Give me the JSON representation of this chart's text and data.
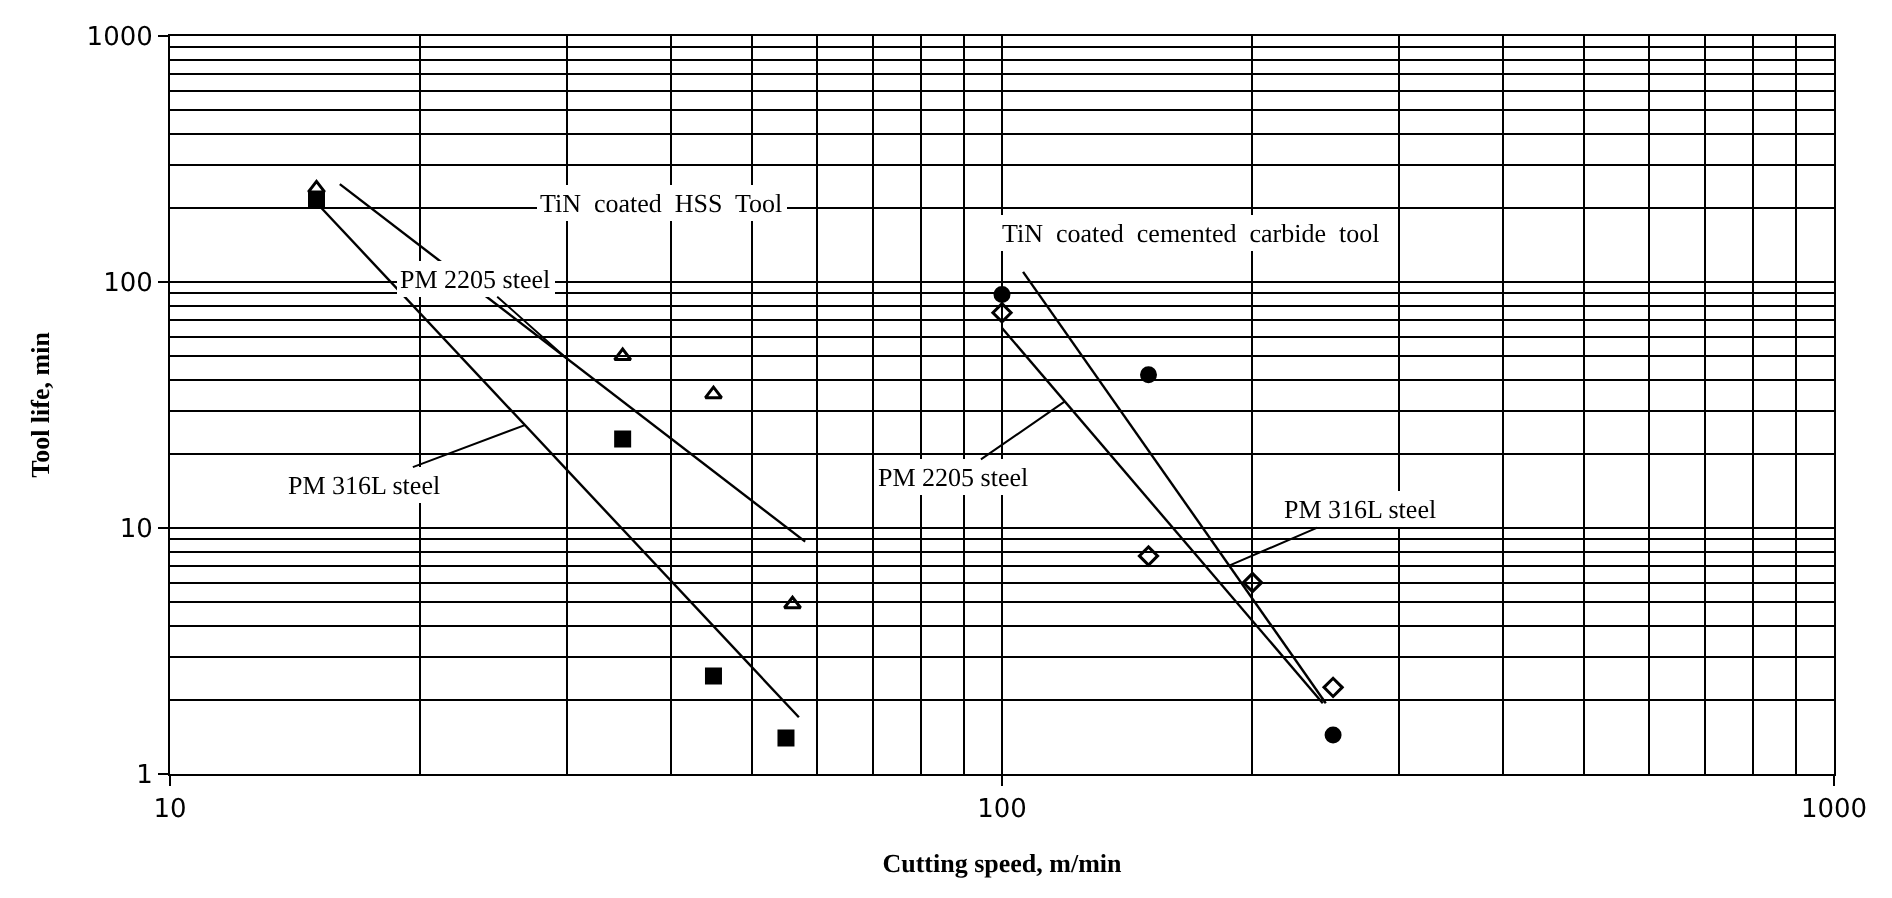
{
  "chart_data": {
    "type": "scatter",
    "xlabel": "Cutting speed, m/min",
    "ylabel": "Tool life, min",
    "log": "xy",
    "grid": true,
    "xlim": [
      10,
      1000
    ],
    "xticks": [
      10,
      100,
      1000
    ],
    "ylim": [
      1,
      1000
    ],
    "yticks": [
      1,
      10,
      100,
      1000
    ],
    "series": [
      {
        "marker": "triangle",
        "color": "#000000",
        "x": [
          15,
          35,
          45,
          56
        ],
        "values": [
          240,
          50,
          35,
          4.9
        ]
      },
      {
        "marker": "square",
        "color": "#000000",
        "x": [
          15,
          35,
          45,
          55
        ],
        "values": [
          215,
          23,
          2.5,
          1.4
        ]
      },
      {
        "marker": "diamond",
        "color": "#000000",
        "x": [
          100,
          150,
          200,
          250
        ],
        "values": [
          75,
          7.7,
          6,
          2.25
        ]
      },
      {
        "marker": "circle",
        "color": "#000000",
        "x": [
          100,
          150,
          250
        ],
        "values": [
          89,
          42,
          1.44
        ]
      },
      {
        "type": "line",
        "marker": "none",
        "color": "#000000",
        "x": [
          16,
          58
        ],
        "values": [
          250,
          8.8
        ]
      },
      {
        "type": "line",
        "marker": "none",
        "color": "#000000",
        "x": [
          15,
          57
        ],
        "values": [
          210,
          1.7
        ]
      },
      {
        "type": "line",
        "marker": "none",
        "color": "#000000",
        "x": [
          106,
          245
        ],
        "values": [
          110,
          1.94
        ]
      },
      {
        "type": "line",
        "marker": "none",
        "color": "#000000",
        "x": [
          100,
          243
        ],
        "values": [
          65,
          1.94
        ]
      }
    ],
    "annotations": [
      "TiN  coated  HSS  Tool",
      "TiN  coated  cemented  carbide  tool",
      {
        "text": "PM 2205 steel",
        "x": 30,
        "y": 48.8
      },
      {
        "text": "PM 316L steel",
        "x": 26.7,
        "y": 26.2
      },
      {
        "text": "PM 2205 steel",
        "x": 119,
        "y": 32.7
      },
      {
        "text": "PM 316L steel",
        "x": 187.5,
        "y": 7.03
      }
    ]
  }
}
